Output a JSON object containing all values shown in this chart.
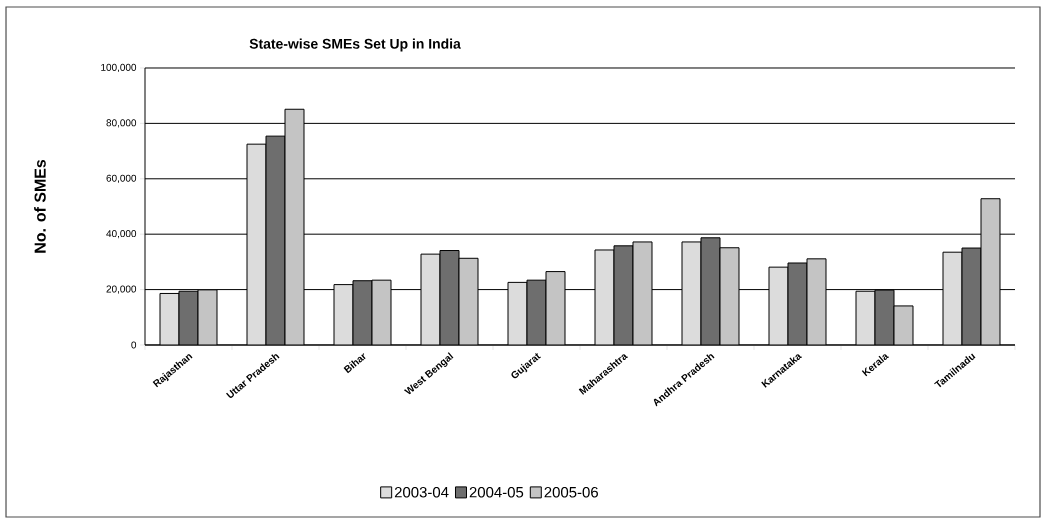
{
  "chart_data": {
    "type": "bar",
    "title": "State-wise SMEs Set Up in India",
    "ylabel": "No. of SMEs",
    "categories": [
      "Rajasthan",
      "Uttar Pradesh",
      "Bihar",
      "West Bengal",
      "Gujarat",
      "Maharashtra",
      "Andhra Pradesh",
      "Karnataka",
      "Kerala",
      "Tamilnadu"
    ],
    "series": [
      {
        "name": "2003-04",
        "color": "#dcdcdc",
        "values": [
          18600,
          72500,
          21800,
          32800,
          22600,
          34300,
          37200,
          28100,
          19400,
          33500
        ]
      },
      {
        "name": "2004-05",
        "color": "#6e6e6e",
        "values": [
          19400,
          75400,
          23200,
          34100,
          23400,
          35800,
          38700,
          29600,
          19800,
          35000
        ]
      },
      {
        "name": "2005-06",
        "color": "#c4c4c4",
        "values": [
          19900,
          85100,
          23400,
          31300,
          26500,
          37200,
          35100,
          31100,
          14100,
          52800
        ]
      }
    ],
    "ylim": [
      0,
      100000
    ],
    "yticks": [
      0,
      {
        "value": 20000,
        "label": "20,000"
      },
      {
        "value": 40000,
        "label": "40,000"
      },
      {
        "value": 60000,
        "label": "60,000"
      },
      {
        "value": 80000,
        "label": "80,000"
      },
      {
        "value": 100000,
        "label": "100,000"
      }
    ],
    "grid": "y",
    "legend": "bottom"
  }
}
